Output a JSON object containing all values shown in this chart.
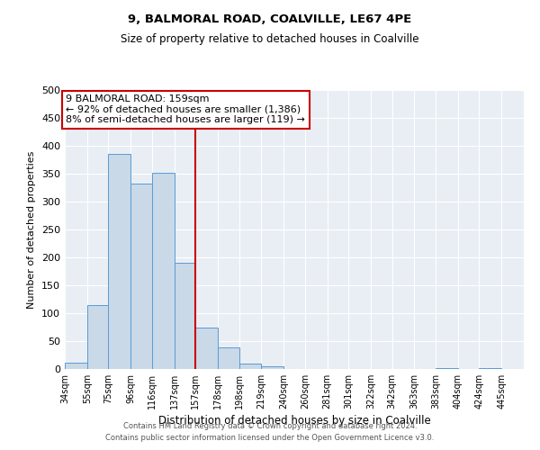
{
  "title": "9, BALMORAL ROAD, COALVILLE, LE67 4PE",
  "subtitle": "Size of property relative to detached houses in Coalville",
  "xlabel": "Distribution of detached houses by size in Coalville",
  "ylabel": "Number of detached properties",
  "bin_labels": [
    "34sqm",
    "55sqm",
    "75sqm",
    "96sqm",
    "116sqm",
    "137sqm",
    "157sqm",
    "178sqm",
    "198sqm",
    "219sqm",
    "240sqm",
    "260sqm",
    "281sqm",
    "301sqm",
    "322sqm",
    "342sqm",
    "363sqm",
    "383sqm",
    "404sqm",
    "424sqm",
    "445sqm"
  ],
  "bin_edges": [
    34,
    55,
    75,
    96,
    116,
    137,
    157,
    178,
    198,
    219,
    240,
    260,
    281,
    301,
    322,
    342,
    363,
    383,
    404,
    424,
    445
  ],
  "bar_values": [
    12,
    115,
    385,
    332,
    352,
    190,
    75,
    38,
    10,
    5,
    0,
    0,
    0,
    0,
    0,
    0,
    0,
    2,
    0,
    2
  ],
  "bar_color": "#c9d9e8",
  "bar_edge_color": "#5b9bd5",
  "property_line_x": 157,
  "property_line_color": "#cc0000",
  "annotation_title": "9 BALMORAL ROAD: 159sqm",
  "annotation_line1": "← 92% of detached houses are smaller (1,386)",
  "annotation_line2": "8% of semi-detached houses are larger (119) →",
  "annotation_box_color": "#cc0000",
  "ylim": [
    0,
    500
  ],
  "yticks": [
    0,
    50,
    100,
    150,
    200,
    250,
    300,
    350,
    400,
    450,
    500
  ],
  "footer1": "Contains HM Land Registry data © Crown copyright and database right 2024.",
  "footer2": "Contains public sector information licensed under the Open Government Licence v3.0.",
  "bg_color": "#e8eef4"
}
